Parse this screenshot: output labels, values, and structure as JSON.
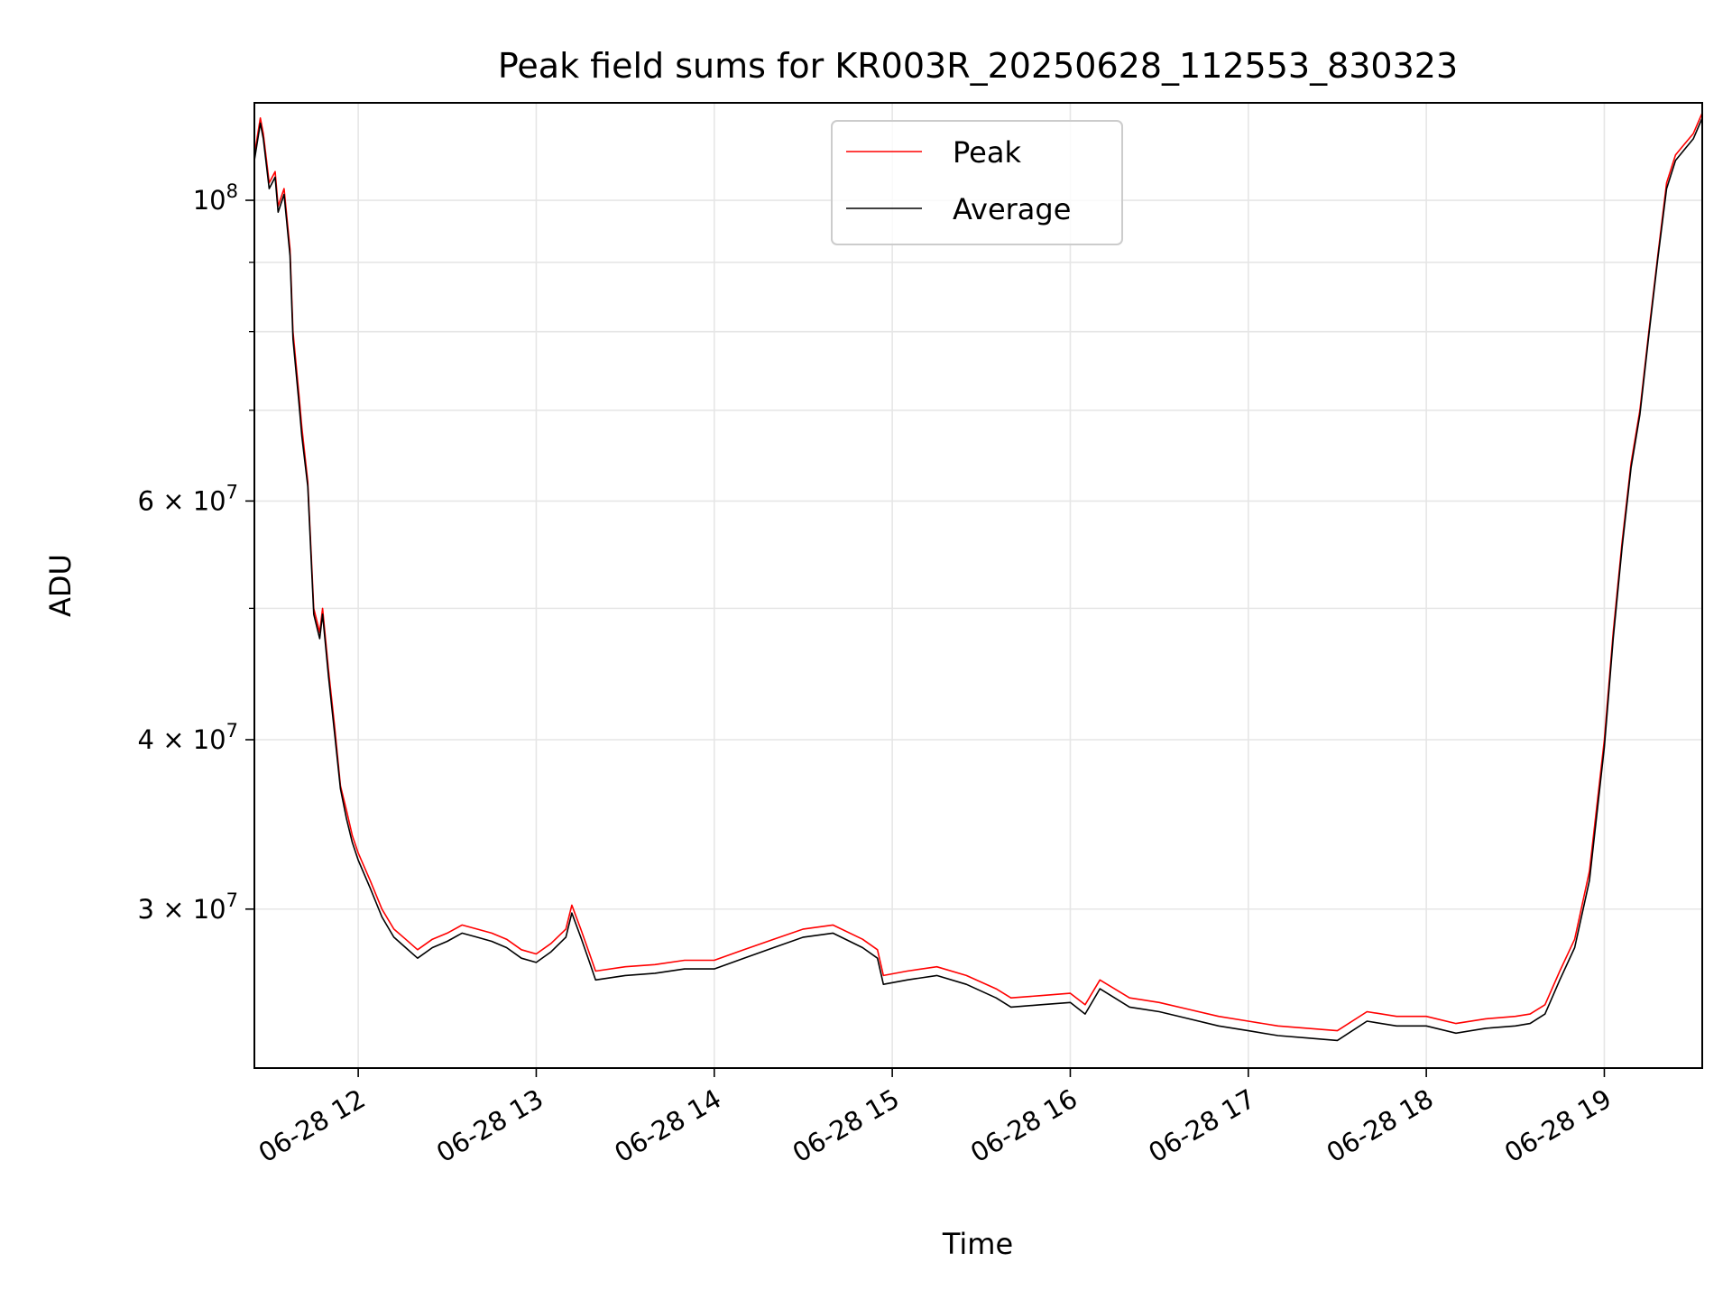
{
  "chart_data": {
    "type": "line",
    "title": "Peak field sums for KR003R_20250628_112553_830323",
    "xlabel": "Time",
    "ylabel": "ADU",
    "y_scale": "log",
    "xlim": [
      "2025-06-28 11:25",
      "2025-06-28 19:33"
    ],
    "ylim": [
      22900000,
      118000000
    ],
    "grid": true,
    "legend_position": "top-center",
    "x_tick_labels": [
      "06-28 12",
      "06-28 13",
      "06-28 14",
      "06-28 15",
      "06-28 16",
      "06-28 17",
      "06-28 18",
      "06-28 19"
    ],
    "x_ticks": [
      "2025-06-28 12:00",
      "2025-06-28 13:00",
      "2025-06-28 14:00",
      "2025-06-28 15:00",
      "2025-06-28 16:00",
      "2025-06-28 17:00",
      "2025-06-28 18:00",
      "2025-06-28 19:00"
    ],
    "y_ticks": [
      {
        "value": 30000000,
        "base": "3",
        "mult": "×",
        "exp_base": "10",
        "exp": "7"
      },
      {
        "value": 40000000,
        "base": "4",
        "mult": "×",
        "exp_base": "10",
        "exp": "7"
      },
      {
        "value": 60000000,
        "base": "6",
        "mult": "×",
        "exp_base": "10",
        "exp": "7"
      },
      {
        "value": 100000000,
        "base": "",
        "mult": "",
        "exp_base": "10",
        "exp": "8"
      }
    ],
    "y_minor_ticks": [
      50000000,
      70000000,
      80000000,
      90000000
    ],
    "series": [
      {
        "name": "Peak",
        "color": "#ff0000",
        "x": [
          "2025-06-28 11:25",
          "2025-06-28 11:27",
          "2025-06-28 11:28",
          "2025-06-28 11:30",
          "2025-06-28 11:32",
          "2025-06-28 11:33",
          "2025-06-28 11:35",
          "2025-06-28 11:37",
          "2025-06-28 11:38",
          "2025-06-28 11:40",
          "2025-06-28 11:41",
          "2025-06-28 11:43",
          "2025-06-28 11:45",
          "2025-06-28 11:47",
          "2025-06-28 11:48",
          "2025-06-28 11:50",
          "2025-06-28 11:52",
          "2025-06-28 11:54",
          "2025-06-28 11:56",
          "2025-06-28 11:58",
          "2025-06-28 12:00",
          "2025-06-28 12:04",
          "2025-06-28 12:08",
          "2025-06-28 12:12",
          "2025-06-28 12:16",
          "2025-06-28 12:20",
          "2025-06-28 12:25",
          "2025-06-28 12:30",
          "2025-06-28 12:35",
          "2025-06-28 12:40",
          "2025-06-28 12:45",
          "2025-06-28 12:50",
          "2025-06-28 12:55",
          "2025-06-28 13:00",
          "2025-06-28 13:05",
          "2025-06-28 13:10",
          "2025-06-28 13:12",
          "2025-06-28 13:15",
          "2025-06-28 13:18",
          "2025-06-28 13:20",
          "2025-06-28 13:30",
          "2025-06-28 13:40",
          "2025-06-28 13:50",
          "2025-06-28 14:00",
          "2025-06-28 14:10",
          "2025-06-28 14:20",
          "2025-06-28 14:30",
          "2025-06-28 14:40",
          "2025-06-28 14:50",
          "2025-06-28 14:55",
          "2025-06-28 14:57",
          "2025-06-28 15:05",
          "2025-06-28 15:15",
          "2025-06-28 15:25",
          "2025-06-28 15:35",
          "2025-06-28 15:40",
          "2025-06-28 15:50",
          "2025-06-28 16:00",
          "2025-06-28 16:05",
          "2025-06-28 16:10",
          "2025-06-28 16:20",
          "2025-06-28 16:30",
          "2025-06-28 16:40",
          "2025-06-28 16:50",
          "2025-06-28 17:00",
          "2025-06-28 17:10",
          "2025-06-28 17:20",
          "2025-06-28 17:30",
          "2025-06-28 17:40",
          "2025-06-28 17:50",
          "2025-06-28 18:00",
          "2025-06-28 18:10",
          "2025-06-28 18:20",
          "2025-06-28 18:30",
          "2025-06-28 18:35",
          "2025-06-28 18:40",
          "2025-06-28 18:45",
          "2025-06-28 18:50",
          "2025-06-28 18:55",
          "2025-06-28 19:00",
          "2025-06-28 19:03",
          "2025-06-28 19:06",
          "2025-06-28 19:09",
          "2025-06-28 19:12",
          "2025-06-28 19:15",
          "2025-06-28 19:18",
          "2025-06-28 19:21",
          "2025-06-28 19:24",
          "2025-06-28 19:27",
          "2025-06-28 19:30",
          "2025-06-28 19:33"
        ],
        "y": [
          108000000,
          115000000,
          112000000,
          103000000,
          105000000,
          99000000,
          102000000,
          92000000,
          80000000,
          72000000,
          68000000,
          62000000,
          50000000,
          48000000,
          50000000,
          45000000,
          41000000,
          37000000,
          35500000,
          34000000,
          33000000,
          31500000,
          30000000,
          29000000,
          28500000,
          28000000,
          28500000,
          28800000,
          29200000,
          29000000,
          28800000,
          28500000,
          28000000,
          27800000,
          28300000,
          29000000,
          30200000,
          29000000,
          27800000,
          27000000,
          27200000,
          27300000,
          27500000,
          27500000,
          28000000,
          28500000,
          29000000,
          29200000,
          28500000,
          28000000,
          26800000,
          27000000,
          27200000,
          26800000,
          26200000,
          25800000,
          25900000,
          26000000,
          25500000,
          26600000,
          25800000,
          25600000,
          25300000,
          25000000,
          24800000,
          24600000,
          24500000,
          24400000,
          25200000,
          25000000,
          25000000,
          24700000,
          24900000,
          25000000,
          25100000,
          25500000,
          27000000,
          28500000,
          32000000,
          40000000,
          48000000,
          56000000,
          64000000,
          70000000,
          80000000,
          91000000,
          103000000,
          108000000,
          110000000,
          112000000,
          116000000
        ]
      },
      {
        "name": "Average",
        "color": "#000000",
        "x": [
          "2025-06-28 11:25",
          "2025-06-28 11:27",
          "2025-06-28 11:28",
          "2025-06-28 11:30",
          "2025-06-28 11:32",
          "2025-06-28 11:33",
          "2025-06-28 11:35",
          "2025-06-28 11:37",
          "2025-06-28 11:38",
          "2025-06-28 11:40",
          "2025-06-28 11:41",
          "2025-06-28 11:43",
          "2025-06-28 11:45",
          "2025-06-28 11:47",
          "2025-06-28 11:48",
          "2025-06-28 11:50",
          "2025-06-28 11:52",
          "2025-06-28 11:54",
          "2025-06-28 11:56",
          "2025-06-28 11:58",
          "2025-06-28 12:00",
          "2025-06-28 12:04",
          "2025-06-28 12:08",
          "2025-06-28 12:12",
          "2025-06-28 12:16",
          "2025-06-28 12:20",
          "2025-06-28 12:25",
          "2025-06-28 12:30",
          "2025-06-28 12:35",
          "2025-06-28 12:40",
          "2025-06-28 12:45",
          "2025-06-28 12:50",
          "2025-06-28 12:55",
          "2025-06-28 13:00",
          "2025-06-28 13:05",
          "2025-06-28 13:10",
          "2025-06-28 13:12",
          "2025-06-28 13:15",
          "2025-06-28 13:18",
          "2025-06-28 13:20",
          "2025-06-28 13:30",
          "2025-06-28 13:40",
          "2025-06-28 13:50",
          "2025-06-28 14:00",
          "2025-06-28 14:10",
          "2025-06-28 14:20",
          "2025-06-28 14:30",
          "2025-06-28 14:40",
          "2025-06-28 14:50",
          "2025-06-28 14:55",
          "2025-06-28 14:57",
          "2025-06-28 15:05",
          "2025-06-28 15:15",
          "2025-06-28 15:25",
          "2025-06-28 15:35",
          "2025-06-28 15:40",
          "2025-06-28 15:50",
          "2025-06-28 16:00",
          "2025-06-28 16:05",
          "2025-06-28 16:10",
          "2025-06-28 16:20",
          "2025-06-28 16:30",
          "2025-06-28 16:40",
          "2025-06-28 16:50",
          "2025-06-28 17:00",
          "2025-06-28 17:10",
          "2025-06-28 17:20",
          "2025-06-28 17:30",
          "2025-06-28 17:40",
          "2025-06-28 17:50",
          "2025-06-28 18:00",
          "2025-06-28 18:10",
          "2025-06-28 18:20",
          "2025-06-28 18:30",
          "2025-06-28 18:35",
          "2025-06-28 18:40",
          "2025-06-28 18:45",
          "2025-06-28 18:50",
          "2025-06-28 18:55",
          "2025-06-28 19:00",
          "2025-06-28 19:03",
          "2025-06-28 19:06",
          "2025-06-28 19:09",
          "2025-06-28 19:12",
          "2025-06-28 19:15",
          "2025-06-28 19:18",
          "2025-06-28 19:21",
          "2025-06-28 19:24",
          "2025-06-28 19:27",
          "2025-06-28 19:30",
          "2025-06-28 19:33"
        ],
        "y": [
          107000000,
          114000000,
          111000000,
          102000000,
          104000000,
          98000000,
          101000000,
          91000000,
          79000000,
          71000000,
          67000000,
          61500000,
          49500000,
          47500000,
          49500000,
          44500000,
          40500000,
          36800000,
          35000000,
          33600000,
          32600000,
          31100000,
          29600000,
          28600000,
          28100000,
          27600000,
          28100000,
          28400000,
          28800000,
          28600000,
          28400000,
          28100000,
          27600000,
          27400000,
          27900000,
          28600000,
          29800000,
          28600000,
          27400000,
          26600000,
          26800000,
          26900000,
          27100000,
          27100000,
          27600000,
          28100000,
          28600000,
          28800000,
          28100000,
          27600000,
          26400000,
          26600000,
          26800000,
          26400000,
          25800000,
          25400000,
          25500000,
          25600000,
          25100000,
          26200000,
          25400000,
          25200000,
          24900000,
          24600000,
          24400000,
          24200000,
          24100000,
          24000000,
          24800000,
          24600000,
          24600000,
          24300000,
          24500000,
          24600000,
          24700000,
          25100000,
          26600000,
          28100000,
          31500000,
          39500000,
          47500000,
          55500000,
          63500000,
          69500000,
          79500000,
          90500000,
          102000000,
          107000000,
          109000000,
          111000000,
          115000000
        ]
      }
    ]
  }
}
